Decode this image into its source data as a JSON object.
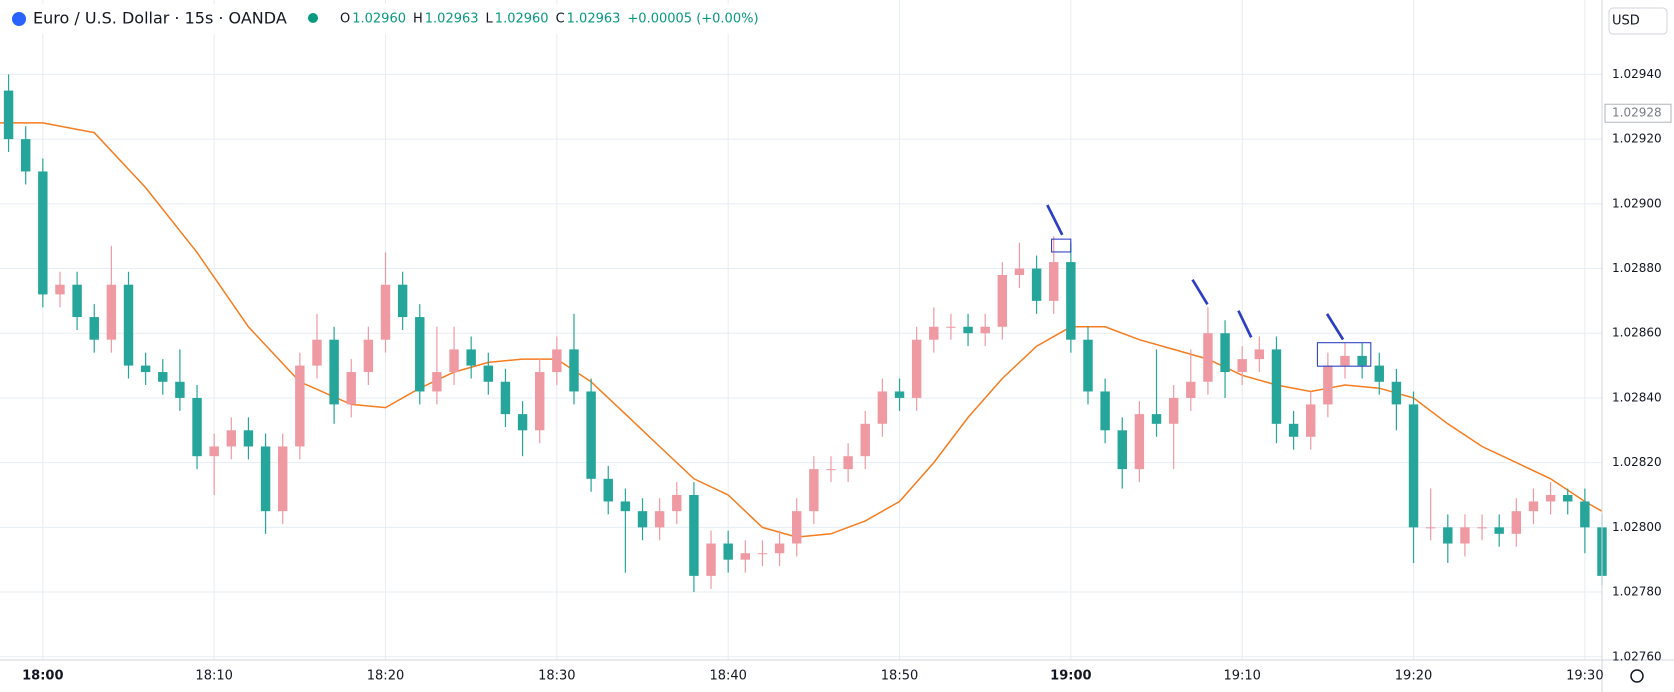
{
  "chart_data": {
    "type": "candlestick",
    "title": "Euro / U.S. Dollar · 15s · OANDA",
    "legend_values": [
      {
        "label": "O",
        "value": "1.02960"
      },
      {
        "label": "H",
        "value": "1.02963"
      },
      {
        "label": "L",
        "value": "1.02960"
      },
      {
        "label": "C",
        "value": "1.02963"
      }
    ],
    "change": "+0.00005 (+0.00%)",
    "currency": "USD",
    "last_price": {
      "value": 1.02928,
      "label": "1.02928"
    },
    "up_color": "#ef9aa3",
    "down_color": "#26a69a",
    "grid": true,
    "xlim": [
      -2.5,
      91
    ],
    "xticks": [
      {
        "value": 0,
        "label": "18:00"
      },
      {
        "value": 10,
        "label": "18:10"
      },
      {
        "value": 20,
        "label": "18:20"
      },
      {
        "value": 30,
        "label": "18:30"
      },
      {
        "value": 40,
        "label": "18:40"
      },
      {
        "value": 50,
        "label": "18:50"
      },
      {
        "value": 60,
        "label": "19:00"
      },
      {
        "value": 70,
        "label": "19:10"
      },
      {
        "value": 80,
        "label": "19:20"
      },
      {
        "value": 90,
        "label": "19:30"
      }
    ],
    "ylim": [
      1.02759,
      1.02963
    ],
    "yticks": [
      {
        "value": 1.0276,
        "label": "1.02760"
      },
      {
        "value": 1.0278,
        "label": "1.02780"
      },
      {
        "value": 1.028,
        "label": "1.02800"
      },
      {
        "value": 1.0282,
        "label": "1.02820"
      },
      {
        "value": 1.0284,
        "label": "1.02840"
      },
      {
        "value": 1.0286,
        "label": "1.02860"
      },
      {
        "value": 1.0288,
        "label": "1.02880"
      },
      {
        "value": 1.029,
        "label": "1.02900"
      },
      {
        "value": 1.0292,
        "label": "1.02920"
      },
      {
        "value": 1.0294,
        "label": "1.02940"
      }
    ],
    "x": [
      -2,
      -1,
      0,
      1,
      2,
      3,
      4,
      5,
      6,
      7,
      8,
      9,
      10,
      11,
      12,
      13,
      14,
      15,
      16,
      17,
      18,
      19,
      20,
      21,
      22,
      23,
      24,
      25,
      26,
      27,
      28,
      29,
      30,
      31,
      32,
      33,
      34,
      35,
      36,
      37,
      38,
      39,
      40,
      41,
      42,
      43,
      44,
      45,
      46,
      47,
      48,
      49,
      50,
      51,
      52,
      53,
      54,
      55,
      56,
      57,
      58,
      59,
      60,
      61,
      62,
      63,
      64,
      65,
      66,
      67,
      68,
      69,
      70,
      71,
      72,
      73,
      74,
      75,
      76,
      77,
      78,
      79,
      80,
      81,
      82,
      83,
      84,
      85,
      86,
      87,
      88,
      89,
      90,
      91
    ],
    "open": [
      1.02935,
      1.0292,
      1.0291,
      1.02872,
      1.02875,
      1.02865,
      1.02858,
      1.02875,
      1.0285,
      1.02848,
      1.02845,
      1.0284,
      1.02822,
      1.02825,
      1.0283,
      1.02825,
      1.02805,
      1.02825,
      1.0285,
      1.02858,
      1.02838,
      1.02848,
      1.02858,
      1.02875,
      1.02865,
      1.02842,
      1.02848,
      1.02855,
      1.0285,
      1.02845,
      1.02835,
      1.0283,
      1.02848,
      1.02855,
      1.02842,
      1.02815,
      1.02808,
      1.02805,
      1.028,
      1.02805,
      1.0281,
      1.02785,
      1.02795,
      1.0279,
      1.02792,
      1.02792,
      1.02795,
      1.02805,
      1.02818,
      1.02818,
      1.02822,
      1.02832,
      1.02842,
      1.0284,
      1.02858,
      1.02862,
      1.02862,
      1.0286,
      1.02862,
      1.02878,
      1.0288,
      1.0287,
      1.02882,
      1.02858,
      1.02842,
      1.0283,
      1.02818,
      1.02835,
      1.02832,
      1.0284,
      1.02845,
      1.0286,
      1.02848,
      1.02852,
      1.02855,
      1.02832,
      1.02828,
      1.02838,
      1.0285,
      1.02853,
      1.0285,
      1.02845,
      1.02838,
      1.028,
      1.028,
      1.02795,
      1.028,
      1.028,
      1.02798,
      1.02805,
      1.02808,
      1.0281,
      1.02808,
      1.028
    ],
    "high": [
      1.0294,
      1.02924,
      1.02914,
      1.02879,
      1.02879,
      1.02869,
      1.02887,
      1.02879,
      1.02854,
      1.02852,
      1.02855,
      1.02844,
      1.02829,
      1.02834,
      1.02834,
      1.02829,
      1.02829,
      1.02854,
      1.02866,
      1.02862,
      1.02852,
      1.02862,
      1.02885,
      1.02879,
      1.02869,
      1.02862,
      1.02862,
      1.02859,
      1.02854,
      1.02849,
      1.02839,
      1.02852,
      1.02859,
      1.02866,
      1.02846,
      1.02819,
      1.02812,
      1.02809,
      1.02809,
      1.02814,
      1.02814,
      1.02799,
      1.02799,
      1.02796,
      1.02796,
      1.02799,
      1.02809,
      1.02822,
      1.02822,
      1.02826,
      1.02836,
      1.02846,
      1.02846,
      1.02862,
      1.02868,
      1.02866,
      1.02866,
      1.02866,
      1.02882,
      1.02888,
      1.02884,
      1.0289,
      1.02888,
      1.02862,
      1.02846,
      1.02834,
      1.02839,
      1.02855,
      1.02844,
      1.02855,
      1.02868,
      1.02864,
      1.02856,
      1.02859,
      1.02859,
      1.02836,
      1.02842,
      1.02854,
      1.02857,
      1.02857,
      1.02854,
      1.02849,
      1.02842,
      1.02812,
      1.02804,
      1.02804,
      1.02804,
      1.02804,
      1.02809,
      1.02812,
      1.02814,
      1.02812,
      1.02812,
      1.02804
    ],
    "low": [
      1.02916,
      1.02906,
      1.02868,
      1.02868,
      1.02861,
      1.02854,
      1.02854,
      1.02846,
      1.02844,
      1.02841,
      1.02836,
      1.02818,
      1.0281,
      1.02821,
      1.02821,
      1.02798,
      1.02801,
      1.02821,
      1.02846,
      1.02832,
      1.02834,
      1.02844,
      1.02854,
      1.02861,
      1.02838,
      1.02838,
      1.02844,
      1.02846,
      1.02841,
      1.02831,
      1.02822,
      1.02826,
      1.02844,
      1.02838,
      1.02811,
      1.02804,
      1.02786,
      1.02796,
      1.02796,
      1.02801,
      1.0278,
      1.02781,
      1.02786,
      1.02786,
      1.02788,
      1.02788,
      1.02791,
      1.02801,
      1.02814,
      1.02814,
      1.02818,
      1.02828,
      1.02836,
      1.02836,
      1.02854,
      1.02858,
      1.02856,
      1.02856,
      1.02858,
      1.02874,
      1.02866,
      1.02866,
      1.02854,
      1.02838,
      1.02826,
      1.02812,
      1.02814,
      1.02828,
      1.02818,
      1.02836,
      1.02841,
      1.0284,
      1.02844,
      1.02848,
      1.02826,
      1.02824,
      1.02824,
      1.02834,
      1.02846,
      1.02846,
      1.02841,
      1.0283,
      1.02789,
      1.02796,
      1.02789,
      1.02791,
      1.02796,
      1.02794,
      1.02794,
      1.02801,
      1.02804,
      1.02804,
      1.02792,
      1.02782
    ],
    "close": [
      1.0292,
      1.0291,
      1.02872,
      1.02875,
      1.02865,
      1.02858,
      1.02875,
      1.0285,
      1.02848,
      1.02845,
      1.0284,
      1.02822,
      1.02825,
      1.0283,
      1.02825,
      1.02805,
      1.02825,
      1.0285,
      1.02858,
      1.02838,
      1.02848,
      1.02858,
      1.02875,
      1.02865,
      1.02842,
      1.02848,
      1.02855,
      1.0285,
      1.02845,
      1.02835,
      1.0283,
      1.02848,
      1.02855,
      1.02842,
      1.02815,
      1.02808,
      1.02805,
      1.028,
      1.02805,
      1.0281,
      1.02785,
      1.02795,
      1.0279,
      1.02792,
      1.02792,
      1.02795,
      1.02805,
      1.02818,
      1.02818,
      1.02822,
      1.02832,
      1.02842,
      1.0284,
      1.02858,
      1.02862,
      1.02862,
      1.0286,
      1.02862,
      1.02878,
      1.0288,
      1.0287,
      1.02882,
      1.02858,
      1.02842,
      1.0283,
      1.02818,
      1.02835,
      1.02832,
      1.0284,
      1.02845,
      1.0286,
      1.02848,
      1.02852,
      1.02855,
      1.02832,
      1.02828,
      1.02838,
      1.0285,
      1.02853,
      1.0285,
      1.02845,
      1.02838,
      1.028,
      1.028,
      1.02795,
      1.028,
      1.028,
      1.02798,
      1.02805,
      1.02808,
      1.0281,
      1.02808,
      1.028,
      1.02785
    ],
    "moving_average": {
      "color": "#f57c1f",
      "x": [
        -2.5,
        0,
        3,
        6,
        9,
        12,
        15,
        18,
        20,
        22,
        24,
        26,
        28,
        30,
        32,
        34,
        36,
        38,
        40,
        42,
        44,
        46,
        48,
        50,
        52,
        54,
        56,
        58,
        60,
        62,
        64,
        66,
        68,
        70,
        72,
        74,
        76,
        78,
        80,
        82,
        84,
        86,
        88,
        90,
        91
      ],
      "values": [
        1.02925,
        1.02925,
        1.02922,
        1.02905,
        1.02885,
        1.02862,
        1.02845,
        1.02838,
        1.02837,
        1.02843,
        1.02848,
        1.02851,
        1.02852,
        1.02852,
        1.02845,
        1.02835,
        1.02825,
        1.02815,
        1.0281,
        1.028,
        1.02797,
        1.02798,
        1.02802,
        1.02808,
        1.0282,
        1.02834,
        1.02846,
        1.02856,
        1.02862,
        1.02862,
        1.02858,
        1.02855,
        1.02852,
        1.02847,
        1.02844,
        1.02842,
        1.02844,
        1.02843,
        1.0284,
        1.02832,
        1.02825,
        1.0282,
        1.02815,
        1.02808,
        1.02805
      ]
    }
  }
}
